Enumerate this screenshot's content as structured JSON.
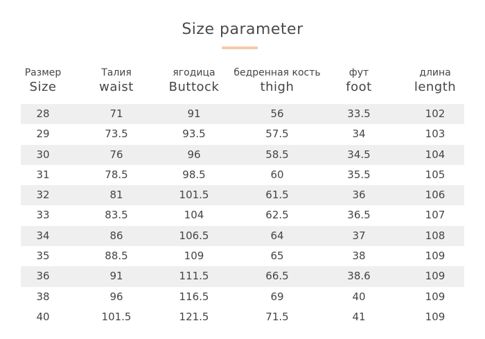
{
  "title": "Size parameter",
  "columns": [
    {
      "ru": "Размер",
      "en": "Size"
    },
    {
      "ru": "Талия",
      "en": "waist"
    },
    {
      "ru": "ягодица",
      "en": "Buttock"
    },
    {
      "ru": "бедренная кость",
      "en": "thigh"
    },
    {
      "ru": "фут",
      "en": "foot"
    },
    {
      "ru": "длина",
      "en": "length"
    }
  ],
  "rows": [
    [
      "28",
      "71",
      "91",
      "56",
      "33.5",
      "102"
    ],
    [
      "29",
      "73.5",
      "93.5",
      "57.5",
      "34",
      "103"
    ],
    [
      "30",
      "76",
      "96",
      "58.5",
      "34.5",
      "104"
    ],
    [
      "31",
      "78.5",
      "98.5",
      "60",
      "35.5",
      "105"
    ],
    [
      "32",
      "81",
      "101.5",
      "61.5",
      "36",
      "106"
    ],
    [
      "33",
      "83.5",
      "104",
      "62.5",
      "36.5",
      "107"
    ],
    [
      "34",
      "86",
      "106.5",
      "64",
      "37",
      "108"
    ],
    [
      "35",
      "88.5",
      "109",
      "65",
      "38",
      "109"
    ],
    [
      "36",
      "91",
      "111.5",
      "66.5",
      "38.6",
      "109"
    ],
    [
      "38",
      "96",
      "116.5",
      "69",
      "40",
      "109"
    ],
    [
      "40",
      "101.5",
      "121.5",
      "71.5",
      "41",
      "109"
    ]
  ],
  "colors": {
    "accent": "#f7c9a6",
    "row_shade": "#efefef",
    "text": "#444444"
  }
}
